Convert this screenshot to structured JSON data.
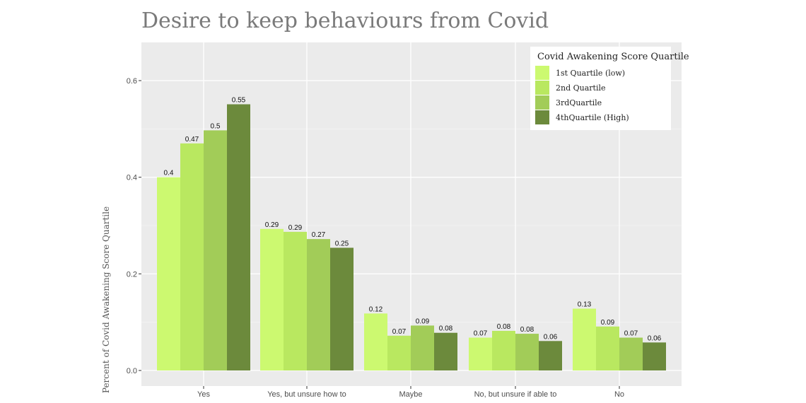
{
  "chart_data": {
    "type": "bar",
    "title": "Desire to keep behaviours from Covid",
    "xlabel": "",
    "ylabel": "Percent of Covid Awakening Score Quartile",
    "ylim": [
      0,
      0.67
    ],
    "yticks": [
      0.0,
      0.2,
      0.4,
      0.6
    ],
    "ytick_labels": [
      "0.0",
      "0.2",
      "0.4",
      "0.6"
    ],
    "grid": true,
    "legend_placement": "top-right",
    "legend_title": "Covid Awakening Score Quartile",
    "categories": [
      "Yes",
      "Yes, but unsure how to",
      "Maybe",
      "No, but unsure if able to",
      "No"
    ],
    "series": [
      {
        "name": "1st Quartile (low)",
        "color": "#ccf970",
        "values": [
          0.4,
          0.293,
          0.118,
          0.068,
          0.128
        ],
        "labels": [
          "0.4",
          "0.29",
          "0.12",
          "0.07",
          "0.13"
        ]
      },
      {
        "name": "2nd Quartile",
        "color": "#b9e860",
        "values": [
          0.47,
          0.287,
          0.072,
          0.082,
          0.091
        ],
        "labels": [
          "0.47",
          "0.29",
          "0.07",
          "0.08",
          "0.09"
        ]
      },
      {
        "name": "3rdQuartile",
        "color": "#a2cc58",
        "values": [
          0.497,
          0.272,
          0.093,
          0.076,
          0.068
        ],
        "labels": [
          "0.5",
          "0.27",
          "0.09",
          "0.08",
          "0.07"
        ]
      },
      {
        "name": "4thQuartile (High)",
        "color": "#6c8a3c",
        "values": [
          0.551,
          0.254,
          0.078,
          0.061,
          0.058
        ],
        "labels": [
          "0.55",
          "0.25",
          "0.08",
          "0.06",
          "0.06"
        ]
      }
    ]
  },
  "colors": {
    "panel": "#ebebeb",
    "grid": "#ffffff",
    "legend_bg": "#ffffff"
  }
}
